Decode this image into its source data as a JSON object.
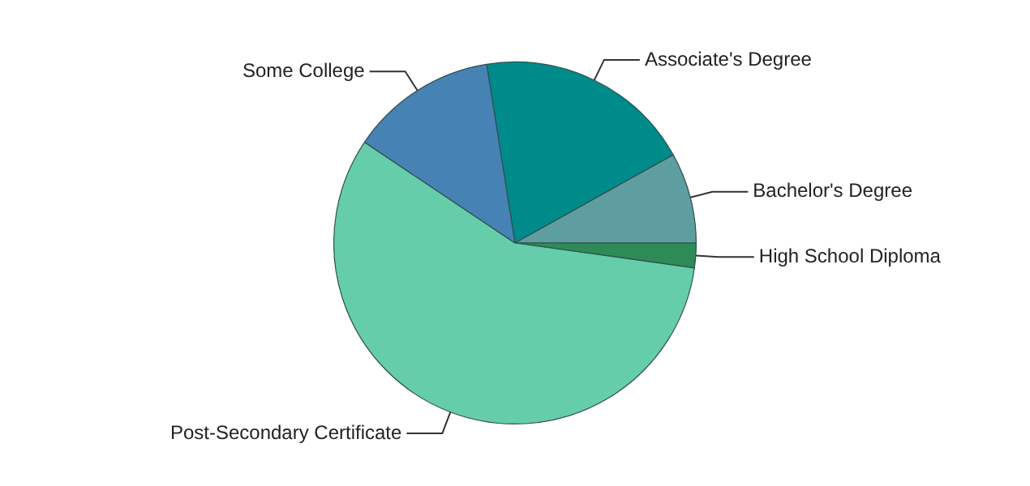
{
  "chart_data": {
    "type": "pie",
    "categories": [
      "Associate's Degree",
      "Bachelor's Degree",
      "High School Diploma",
      "Post-Secondary Certificate",
      "Some College"
    ],
    "values": [
      19.4,
      8.1,
      2.2,
      57.2,
      13.1
    ],
    "colors": [
      "#008b8b",
      "#5f9ea0",
      "#2e8b57",
      "#66cdaa",
      "#4682b4"
    ],
    "legend": false
  }
}
